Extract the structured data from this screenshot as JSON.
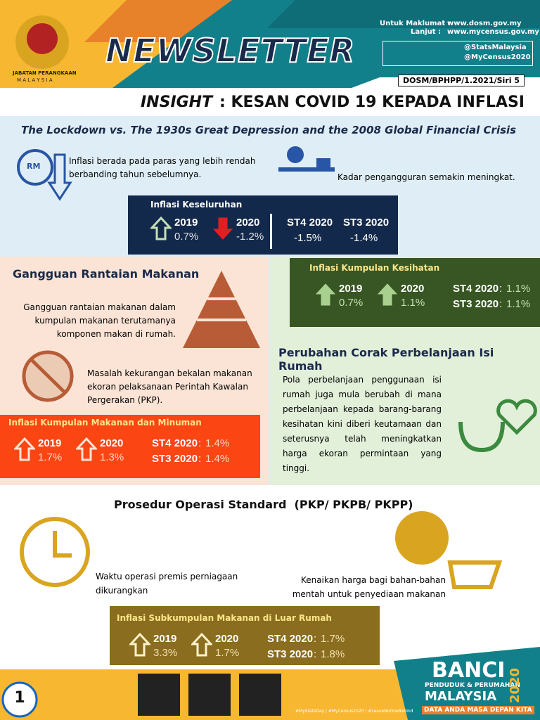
{
  "header": {
    "logo_text": "JABATAN PERANGKAAN",
    "logo_subtext": "M A L A Y S I A",
    "title": "NEWSLETTER",
    "info_label_1": "Untuk Maklumat :",
    "info_url_1": "www.dosm.gov.my",
    "info_label_2": "Lanjut :",
    "info_url_2": "www.mycensus.gov.my",
    "social_1": "@StatsMalaysia",
    "social_2": "@MyCensus2020",
    "reference": "DOSM/BPHPP/1.2021/Siri 5"
  },
  "headline": {
    "insight": "INSIGHT",
    "title": ": KESAN COVID 19 KEPADA INFLASI",
    "subtitle": "The Lockdown vs. The 1930s Great Depression and the 2008 Global Financial Crisis"
  },
  "intro": {
    "rm_icon": "RM",
    "left": "Inflasi berada pada paras yang lebih rendah berbanding tahun sebelumnya.",
    "right": "Kadar pengangguran semakin meningkat."
  },
  "overall": {
    "title": "Inflasi Keseluruhan",
    "items": [
      {
        "label": "2019",
        "value": "0.7%"
      },
      {
        "label": "2020",
        "value": "-1.2%"
      },
      {
        "label": "ST4 2020",
        "value": "-1.5%"
      },
      {
        "label": "ST3 2020",
        "value": "-1.4%"
      }
    ]
  },
  "food_chain": {
    "title": "Gangguan Rantaian Makanan",
    "text_1": "Gangguan rantaian makanan dalam kumpulan makanan terutamanya komponen makan di rumah.",
    "text_2": "Masalah kekurangan bekalan makanan ekoran pelaksanaan Perintah Kawalan Pergerakan (PKP)."
  },
  "food_inflation": {
    "title": "Inflasi Kumpulan Makanan dan Minuman",
    "separator": ":",
    "items": [
      {
        "label": "2019",
        "value": "1.7%"
      },
      {
        "label": "2020",
        "value": "1.3%"
      },
      {
        "label": "ST4 2020",
        "value": "1.4%"
      },
      {
        "label": "ST3 2020",
        "value": "1.4%"
      }
    ]
  },
  "health_inflation": {
    "title": "Inflasi Kumpulan Kesihatan",
    "separator": ":",
    "items": [
      {
        "label": "2019",
        "value": "0.7%"
      },
      {
        "label": "2020",
        "value": "1.1%"
      },
      {
        "label": "ST4 2020",
        "value": "1.1%"
      },
      {
        "label": "ST3 2020",
        "value": "1.1%"
      }
    ]
  },
  "spending": {
    "title": "Perubahan Corak Perbelanjaan Isi Rumah",
    "text": "Pola perbelanjaan penggunaan isi rumah juga mula berubah di mana perbelanjaan kepada barang-barang kesihatan kini diberi keutamaan dan seterusnya telah meningkatkan harga ekoran permintaan yang tinggi."
  },
  "sop": {
    "title": "Prosedur Operasi Standard  (PKP/ PKPB/ PKPP)",
    "left": "Waktu operasi premis perniagaan dikurangkan",
    "right": "Kenaikan harga bagi bahan-bahan mentah untuk penyediaan makanan"
  },
  "food_away_inflation": {
    "title": "Inflasi Subkumpulan Makanan di Luar Rumah",
    "separator": ":",
    "items": [
      {
        "label": "2019",
        "value": "3.3%"
      },
      {
        "label": "2020",
        "value": "1.7%"
      },
      {
        "label": "ST4 2020",
        "value": "1.7%"
      },
      {
        "label": "ST3 2020",
        "value": "1.8%"
      }
    ]
  },
  "footer": {
    "page": "1",
    "hashtags": "#MyStatsDay | #MyCensus2020 | #LeaveNoOneBehind",
    "banci": "BANCI",
    "banci_sub": "PENDUDUK & PERUMAHAN",
    "banci_country": "MALAYSIA",
    "banci_year": "2020",
    "banci_slogan": "DATA ANDA MASA DEPAN KITA"
  }
}
